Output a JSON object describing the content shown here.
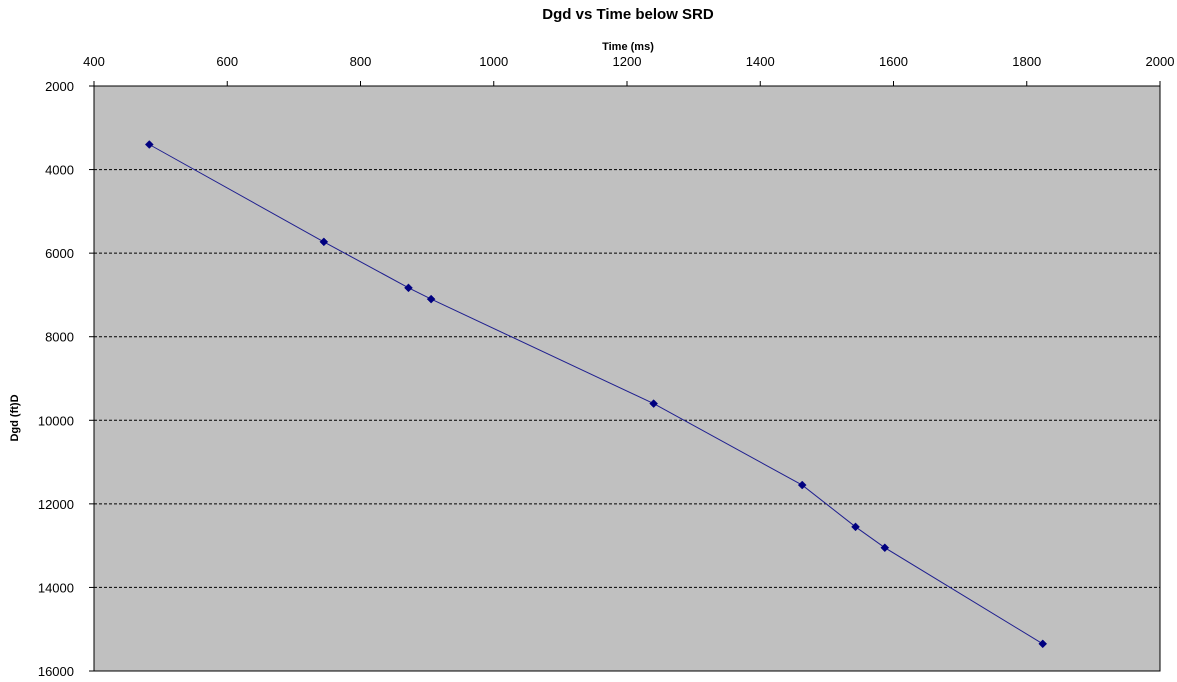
{
  "chart_data": {
    "type": "line",
    "title": "Dgd  vs Time below SRD",
    "xlabel": "Time (ms)",
    "ylabel": "Dgd (ft)D",
    "xlim": [
      400,
      2000
    ],
    "ylim": [
      2000,
      16000
    ],
    "y_inverted": true,
    "x_axis_position": "top",
    "xticks": [
      400,
      600,
      800,
      1000,
      1200,
      1400,
      1600,
      1800,
      2000
    ],
    "yticks": [
      2000,
      4000,
      6000,
      8000,
      10000,
      12000,
      14000,
      16000
    ],
    "grid": "horizontal dashed",
    "legend": "none",
    "series": [
      {
        "x": [
          483,
          745,
          872,
          906,
          1240,
          1463,
          1543,
          1587,
          1824
        ],
        "y": [
          3400,
          5730,
          6830,
          7100,
          9600,
          11550,
          12550,
          13050,
          15350
        ],
        "color": "#1f1f8f"
      }
    ],
    "plot_background": "#c0c0c0",
    "grid_color": "#000000"
  }
}
